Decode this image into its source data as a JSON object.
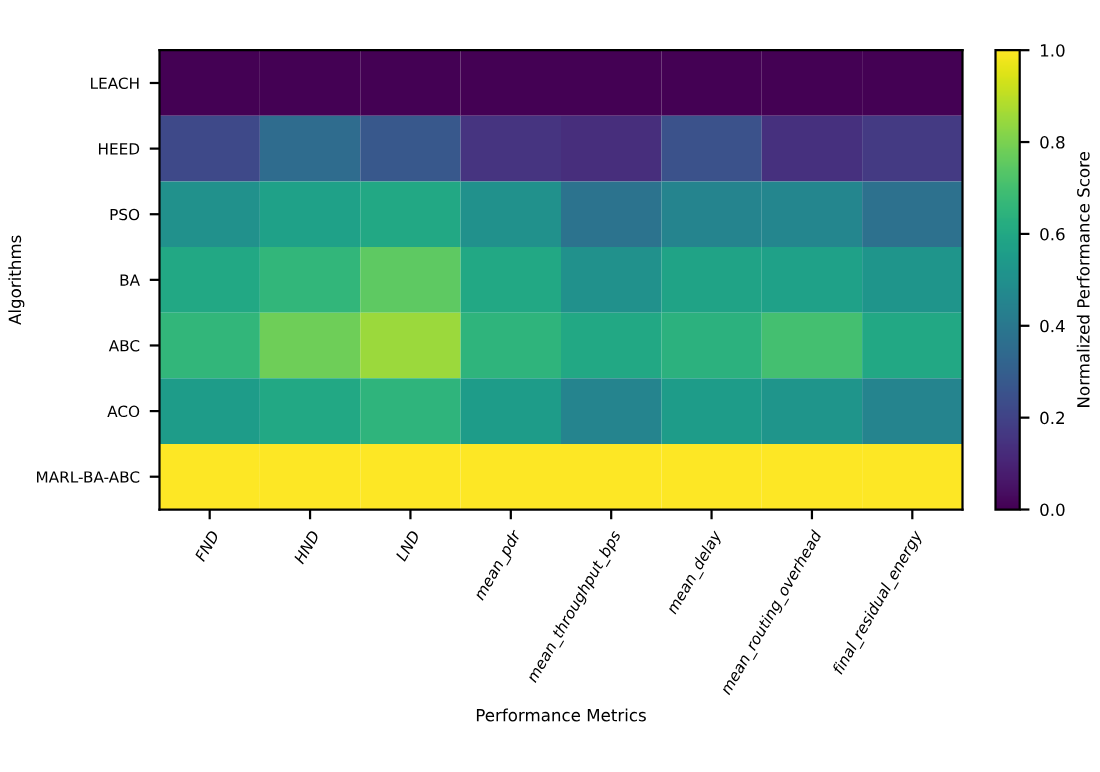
{
  "chart_data": {
    "type": "heatmap",
    "xlabel": "Performance Metrics",
    "ylabel": "Algorithms",
    "clabel": "Normalized Performance Score",
    "categories": [
      "FND",
      "HND",
      "LND",
      "mean_pdr",
      "mean_throughput_bps",
      "mean_delay",
      "mean_routing_overhead",
      "final_residual_energy"
    ],
    "y_categories": [
      "LEACH",
      "HEED",
      "PSO",
      "BA",
      "ABC",
      "ACO",
      "MARL-BA-ABC"
    ],
    "cells": [
      [
        0.0,
        0.0,
        0.0,
        0.0,
        0.0,
        0.0,
        0.0,
        0.0
      ],
      [
        0.22,
        0.35,
        0.27,
        0.15,
        0.13,
        0.25,
        0.14,
        0.17
      ],
      [
        0.5,
        0.57,
        0.6,
        0.5,
        0.38,
        0.45,
        0.46,
        0.37
      ],
      [
        0.6,
        0.66,
        0.75,
        0.6,
        0.5,
        0.58,
        0.57,
        0.52
      ],
      [
        0.66,
        0.78,
        0.85,
        0.65,
        0.6,
        0.64,
        0.7,
        0.6
      ],
      [
        0.55,
        0.6,
        0.65,
        0.55,
        0.45,
        0.55,
        0.52,
        0.45
      ],
      [
        1.0,
        1.0,
        1.0,
        1.0,
        1.0,
        1.0,
        1.0,
        1.0
      ]
    ],
    "clim": [
      0.0,
      1.0
    ],
    "cticks": [
      {
        "value": 0.0,
        "label": "0.0"
      },
      {
        "value": 0.2,
        "label": "0.2"
      },
      {
        "value": 0.4,
        "label": "0.4"
      },
      {
        "value": 0.6,
        "label": "0.6"
      },
      {
        "value": 0.8,
        "label": "0.8"
      },
      {
        "value": 1.0,
        "label": "1.0"
      }
    ]
  }
}
